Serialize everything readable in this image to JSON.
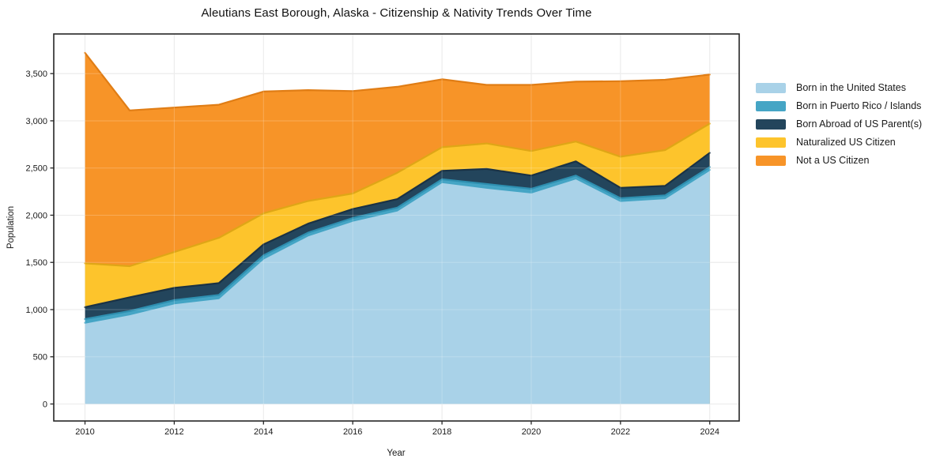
{
  "title": "Aleutians East Borough, Alaska - Citizenship & Nativity Trends Over Time",
  "chart_data": {
    "type": "area",
    "stacked": true,
    "title": "Aleutians East Borough, Alaska - Citizenship & Nativity Trends Over Time",
    "xlabel": "Year",
    "ylabel": "Population",
    "x": [
      2010,
      2011,
      2012,
      2013,
      2014,
      2015,
      2016,
      2017,
      2018,
      2019,
      2020,
      2021,
      2022,
      2023,
      2024
    ],
    "series": [
      {
        "name": "Born in the United States",
        "color": "#a9d2e8",
        "edge": "#45a5c5",
        "values": [
          860,
          950,
          1065,
          1120,
          1540,
          1785,
          1940,
          2050,
          2350,
          2290,
          2240,
          2390,
          2150,
          2180,
          2480
        ]
      },
      {
        "name": "Born in Puerto Rico / Islands",
        "color": "#45a5c5",
        "edge": "#2e8fb0",
        "values": [
          40,
          35,
          35,
          35,
          35,
          30,
          30,
          30,
          30,
          40,
          40,
          30,
          30,
          30,
          30
        ]
      },
      {
        "name": "Born Abroad of US Parent(s)",
        "color": "#23455c",
        "edge": "#1a3245",
        "values": [
          125,
          145,
          130,
          125,
          115,
          95,
          95,
          90,
          90,
          160,
          140,
          150,
          110,
          100,
          150
        ]
      },
      {
        "name": "Naturalized US Citizen",
        "color": "#fdc42c",
        "edge": "#dfa616",
        "values": [
          465,
          330,
          380,
          480,
          330,
          240,
          165,
          280,
          250,
          270,
          260,
          210,
          330,
          380,
          310
        ]
      },
      {
        "name": "Not a US Citizen",
        "color": "#f79428",
        "edge": "#e07d15",
        "values": [
          2230,
          1650,
          1530,
          1410,
          1290,
          1175,
          1085,
          910,
          720,
          620,
          700,
          635,
          800,
          745,
          520
        ]
      }
    ],
    "xticks": [
      2010,
      2012,
      2014,
      2016,
      2018,
      2020,
      2022,
      2024
    ],
    "yticks": [
      0,
      500,
      1000,
      1500,
      2000,
      2500,
      3000,
      3500
    ],
    "xlim": [
      2009.3,
      2024.66
    ],
    "ylim": [
      -180,
      3920
    ],
    "grid": true,
    "legend_position": "right",
    "frame_color": "#262626",
    "grid_color": "#e4e4e4",
    "tick_label_color": "#1a1a1a"
  }
}
